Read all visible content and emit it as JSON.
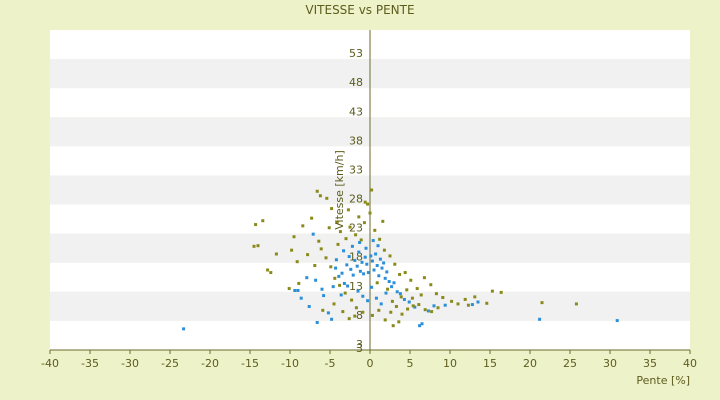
{
  "colors": {
    "page_bg": "#eef2c9",
    "band_light": "#ffffff",
    "band_dark": "#f1f1f1",
    "axis": "#6b6b2e",
    "text": "#5c5c1e",
    "series_blue": "#2a8fd8",
    "series_olive": "#8a8a1a"
  },
  "chart_data": {
    "type": "scatter",
    "title": "VITESSE vs PENTE",
    "xlabel": "Pente [%]",
    "ylabel": "Vitesse [km/h]",
    "xlim": [
      -40,
      40
    ],
    "ylim": [
      3,
      53
    ],
    "x_ticks": [
      "-40",
      "-35",
      "-30",
      "-25",
      "-20",
      "-15",
      "-10",
      "-5",
      "0",
      "5",
      "10",
      "15",
      "20",
      "25",
      "30",
      "35",
      "40"
    ],
    "y_ticks": [
      "3",
      "3",
      "8",
      "13",
      "18",
      "23",
      "28",
      "33",
      "38",
      "43",
      "48",
      "53"
    ],
    "grid": "horizontal-bands",
    "legend": "none",
    "series": [
      {
        "color": "#2a8fd8",
        "points": [
          [
            -23.3,
            6.3
          ],
          [
            -9.4,
            12.3
          ],
          [
            -9.0,
            12.3
          ],
          [
            -7.6,
            9.8
          ],
          [
            -6.6,
            7.3
          ],
          [
            -6.0,
            12.5
          ],
          [
            -5.2,
            8.8
          ],
          [
            -4.8,
            7.8
          ],
          [
            -4.3,
            15.8
          ],
          [
            -4.2,
            17.1
          ],
          [
            -3.9,
            14.5
          ],
          [
            -3.5,
            15.0
          ],
          [
            -3.2,
            13.4
          ],
          [
            -2.9,
            16.3
          ],
          [
            -2.6,
            17.6
          ],
          [
            -2.4,
            15.6
          ],
          [
            -2.1,
            14.7
          ],
          [
            -1.9,
            17.0
          ],
          [
            -1.6,
            16.1
          ],
          [
            -1.4,
            18.3
          ],
          [
            -1.2,
            15.3
          ],
          [
            -1.0,
            16.7
          ],
          [
            -0.8,
            14.9
          ],
          [
            -0.6,
            17.5
          ],
          [
            -0.4,
            16.4
          ],
          [
            -0.2,
            15.1
          ],
          [
            0.1,
            17.7
          ],
          [
            0.3,
            16.9
          ],
          [
            0.5,
            15.5
          ],
          [
            0.7,
            18.0
          ],
          [
            0.9,
            16.2
          ],
          [
            1.1,
            14.6
          ],
          [
            1.3,
            17.2
          ],
          [
            1.5,
            15.8
          ],
          [
            1.7,
            16.6
          ],
          [
            1.9,
            14.2
          ],
          [
            2.1,
            15.2
          ],
          [
            2.4,
            13.7
          ],
          [
            2.7,
            12.9
          ],
          [
            3.0,
            13.5
          ],
          [
            3.4,
            12.1
          ],
          [
            3.8,
            11.8
          ],
          [
            4.3,
            10.9
          ],
          [
            4.9,
            10.5
          ],
          [
            5.6,
            9.7
          ],
          [
            6.2,
            6.8
          ],
          [
            6.5,
            7.1
          ],
          [
            7.3,
            9.1
          ],
          [
            8.0,
            9.9
          ],
          [
            9.4,
            10.0
          ],
          [
            12.8,
            10.1
          ],
          [
            13.5,
            10.5
          ],
          [
            21.2,
            7.8
          ],
          [
            30.9,
            7.6
          ],
          [
            -1.5,
            12.2
          ],
          [
            -0.9,
            11.4
          ],
          [
            -0.3,
            10.7
          ],
          [
            0.2,
            12.8
          ],
          [
            0.8,
            11.1
          ],
          [
            1.4,
            10.2
          ],
          [
            2.0,
            11.9
          ],
          [
            -2.8,
            13.0
          ],
          [
            -3.6,
            11.6
          ],
          [
            -4.6,
            12.9
          ],
          [
            -5.8,
            11.5
          ],
          [
            -6.8,
            13.9
          ],
          [
            -7.9,
            14.3
          ],
          [
            -8.6,
            11.1
          ],
          [
            -3.3,
            18.5
          ],
          [
            -2.2,
            19.2
          ],
          [
            -1.3,
            19.8
          ],
          [
            -0.5,
            18.9
          ],
          [
            0.4,
            20.1
          ],
          [
            1.0,
            19.3
          ],
          [
            -7.1,
            21.1
          ]
        ]
      },
      {
        "color": "#8a8a1a",
        "points": [
          [
            -14.3,
            22.6
          ],
          [
            -13.4,
            23.2
          ],
          [
            -14.5,
            19.2
          ],
          [
            -14.0,
            19.3
          ],
          [
            -11.7,
            18.0
          ],
          [
            -12.4,
            15.1
          ],
          [
            -12.8,
            15.5
          ],
          [
            -9.8,
            18.6
          ],
          [
            -9.5,
            20.7
          ],
          [
            -8.4,
            22.4
          ],
          [
            -7.3,
            23.6
          ],
          [
            -6.6,
            27.8
          ],
          [
            -6.2,
            27.1
          ],
          [
            -5.4,
            26.7
          ],
          [
            -4.8,
            25.1
          ],
          [
            -4.1,
            23.0
          ],
          [
            -3.7,
            21.5
          ],
          [
            -3.0,
            20.4
          ],
          [
            -2.5,
            22.2
          ],
          [
            -1.8,
            21.0
          ],
          [
            -1.1,
            20.2
          ],
          [
            -0.7,
            22.9
          ],
          [
            -0.3,
            25.8
          ],
          [
            0.0,
            24.4
          ],
          [
            0.6,
            21.7
          ],
          [
            1.2,
            20.3
          ],
          [
            1.8,
            18.6
          ],
          [
            2.5,
            17.7
          ],
          [
            3.1,
            16.4
          ],
          [
            3.7,
            14.8
          ],
          [
            4.4,
            15.1
          ],
          [
            5.1,
            13.9
          ],
          [
            5.9,
            12.6
          ],
          [
            6.8,
            14.3
          ],
          [
            7.6,
            13.2
          ],
          [
            8.3,
            11.8
          ],
          [
            9.1,
            11.2
          ],
          [
            10.2,
            10.6
          ],
          [
            11.0,
            10.2
          ],
          [
            11.9,
            10.9
          ],
          [
            12.3,
            10.0
          ],
          [
            13.1,
            11.3
          ],
          [
            14.6,
            10.3
          ],
          [
            15.3,
            12.2
          ],
          [
            16.4,
            12.0
          ],
          [
            21.5,
            10.4
          ],
          [
            25.8,
            10.2
          ],
          [
            -9.1,
            16.8
          ],
          [
            -7.8,
            17.9
          ],
          [
            -6.9,
            16.2
          ],
          [
            -6.1,
            18.8
          ],
          [
            -5.5,
            17.4
          ],
          [
            -4.9,
            16.0
          ],
          [
            -4.4,
            14.2
          ],
          [
            -3.8,
            13.1
          ],
          [
            -3.1,
            11.9
          ],
          [
            -2.3,
            10.8
          ],
          [
            -1.7,
            9.6
          ],
          [
            -0.9,
            8.9
          ],
          [
            0.3,
            8.4
          ],
          [
            1.1,
            9.2
          ],
          [
            1.9,
            7.7
          ],
          [
            2.6,
            8.9
          ],
          [
            3.3,
            9.8
          ],
          [
            4.0,
            8.6
          ],
          [
            4.7,
            9.4
          ],
          [
            5.4,
            9.9
          ],
          [
            6.1,
            10.1
          ],
          [
            6.9,
            9.3
          ],
          [
            7.7,
            9.0
          ],
          [
            8.5,
            9.6
          ],
          [
            3.6,
            7.4
          ],
          [
            2.9,
            6.8
          ],
          [
            -5.9,
            9.2
          ],
          [
            -4.5,
            10.2
          ],
          [
            -3.4,
            9.0
          ],
          [
            -2.6,
            7.9
          ],
          [
            -1.9,
            8.3
          ],
          [
            0.9,
            13.5
          ],
          [
            2.2,
            12.5
          ],
          [
            2.8,
            10.6
          ],
          [
            3.9,
            11.3
          ],
          [
            4.6,
            12.4
          ],
          [
            5.3,
            11.1
          ],
          [
            6.4,
            11.6
          ],
          [
            -8.9,
            13.4
          ],
          [
            -10.1,
            12.6
          ],
          [
            -0.6,
            26.1
          ],
          [
            0.2,
            28.0
          ],
          [
            -1.4,
            23.8
          ],
          [
            -2.7,
            24.9
          ],
          [
            -5.1,
            22.1
          ],
          [
            -6.4,
            20.0
          ],
          [
            -4.0,
            19.5
          ],
          [
            1.6,
            23.1
          ]
        ]
      }
    ]
  }
}
